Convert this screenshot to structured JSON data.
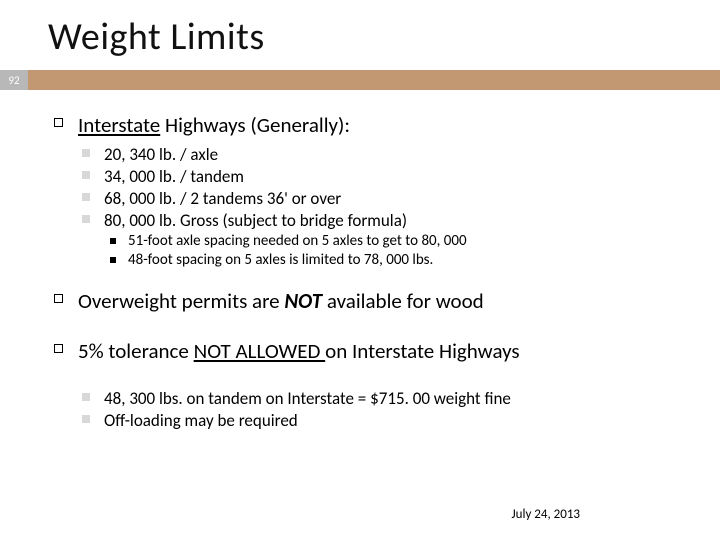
{
  "slide_number": "92",
  "title": "Weight Limits",
  "bar_num_bg": "#b8b8b8",
  "bar_rest_bg": "#c19872",
  "heading1_prefix": "Interstate",
  "heading1_rest": " Highways (Generally):",
  "limits": [
    "20, 340 lb. / axle",
    "34, 000 lb. / tandem",
    "68, 000 lb. / 2 tandems 36' or over",
    "80, 000 lb. Gross (subject to bridge formula)"
  ],
  "subnotes": [
    "51-foot axle spacing needed on 5 axles to get to 80, 000",
    "48-foot spacing on 5 axles is limited to 78, 000 lbs."
  ],
  "line2_a": "Overweight permits are ",
  "line2_b": "NOT",
  "line2_c": " available for wood",
  "line3_a": "5% tolerance ",
  "line3_b": "NOT ALLOWED ",
  "line3_c": "on Interstate Highways",
  "tail": [
    "48, 300 lbs. on tandem on Interstate = $715. 00 weight fine",
    "Off-loading may be required"
  ],
  "date": "July 24, 2013"
}
